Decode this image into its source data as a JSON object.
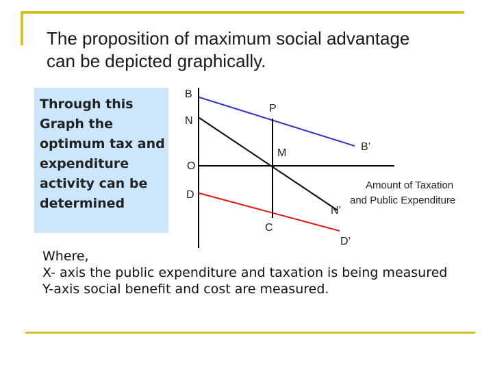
{
  "slide": {
    "title_line_1": "The proposition of maximum social advantage",
    "title_line_2": "can be depicted graphically.",
    "info_box": "Through this Graph the optimum tax and expenditure activity can be determined",
    "where_heading": "Where,",
    "where_x_axis": "X- axis the public expenditure and taxation is being measured",
    "where_y_axis": "Y-axis social benefit and cost are measured."
  },
  "diagram": {
    "labels": {
      "B": "B",
      "P": "P",
      "N": "N",
      "M": "M",
      "B_prime": "B’",
      "O": "O",
      "D": "D",
      "N_prime": "N’",
      "C": "C",
      "D_prime": "D’",
      "x_axis_line_1": "Amount of Taxation",
      "x_axis_line_2": "and Public Expenditure"
    },
    "colors": {
      "axes": "#000000",
      "benefit_curve": "#2b35c8",
      "net_curve": "#000000",
      "cost_curve": "#e01818",
      "guide_line": "#000000",
      "rule": "#d4c020",
      "info_box": "#cce6fb"
    }
  }
}
